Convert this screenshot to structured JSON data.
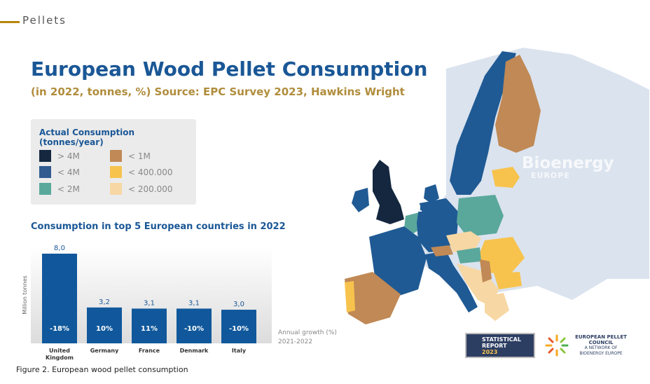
{
  "section": "Pellets",
  "title": "European Wood Pellet Consumption",
  "subtitle": "(in 2022, tonnes, %) Source: EPC Survey 2023, Hawkins Wright",
  "legend": {
    "title": "Actual Consumption (tonnes/year)",
    "items": [
      {
        "label": "> 4M",
        "color": "#14273f"
      },
      {
        "label": "< 4M",
        "color": "#2f5b91"
      },
      {
        "label": "< 2M",
        "color": "#5aa89c"
      },
      {
        "label": "< 1M",
        "color": "#c08955"
      },
      {
        "label": "< 400.000",
        "color": "#f7c34d"
      },
      {
        "label": "< 200.000",
        "color": "#f7d7a3"
      }
    ]
  },
  "chart_data": {
    "type": "bar",
    "title": "Consumption in top 5 European countries in 2022",
    "ylabel": "Million tonnes",
    "categories": [
      "United Kingdom",
      "Germany",
      "France",
      "Denmark",
      "Italy"
    ],
    "values": [
      8.0,
      3.2,
      3.1,
      3.1,
      3.0
    ],
    "value_labels": [
      "8,0",
      "3,2",
      "3,1",
      "3,1",
      "3,0"
    ],
    "growth": [
      "-18%",
      "10%",
      "11%",
      "-10%",
      "-10%"
    ],
    "growth_label": "Annual growth (%)",
    "growth_period": "2021-2022",
    "ylim": [
      0,
      8.0
    ],
    "bar_color": "#10589b"
  },
  "map": {
    "marker": "1",
    "watermark": "Bioenergy",
    "watermark_sub": "EUROPE"
  },
  "logos": {
    "stat_report_line1": "STATISTICAL",
    "stat_report_line2": "REPORT",
    "stat_report_year": "2023",
    "epc_line1": "EUROPEAN PELLET",
    "epc_line2": "COUNCIL",
    "epc_line3": "A NETWORK OF BIOENERGY EUROPE"
  },
  "caption": "Figure 2.  European wood pellet consumption"
}
